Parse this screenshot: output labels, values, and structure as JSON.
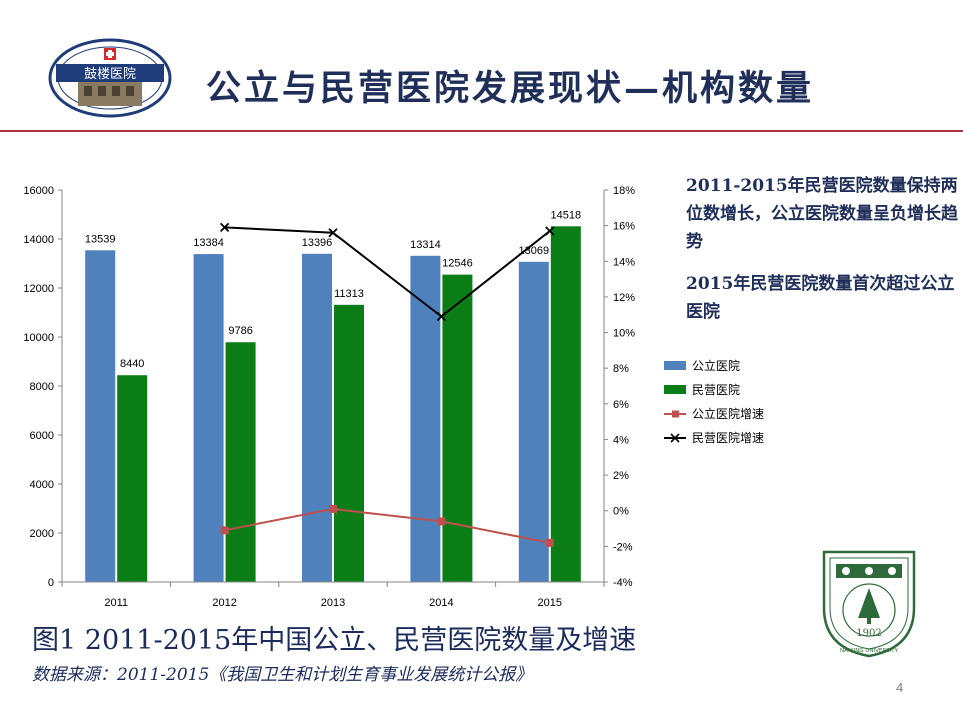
{
  "slide": {
    "title": "公立与民营医院发展现状—机构数量",
    "page_number": "4",
    "logo": {
      "text": "鼓楼医院"
    },
    "seal": {
      "year": "1902",
      "text": "NANJING UNIVERSITY"
    },
    "notes": [
      "2011-2015年民营医院数量保持两位数增长，公立医院数量呈负增长趋势",
      "2015年民营医院数量首次超过公立医院"
    ],
    "caption": "图1 2011-2015年中国公立、民营医院数量及增速",
    "source": "数据来源：2011-2015《我国卫生和计划生育事业发展统计公报》",
    "colors": {
      "accent_rule": "#a7363d",
      "title": "#1f2f5a"
    }
  },
  "chart_data": {
    "type": "bar",
    "categories": [
      "2011",
      "2012",
      "2013",
      "2014",
      "2015"
    ],
    "series": [
      {
        "name": "公立医院",
        "type": "bar",
        "axis": "left",
        "color": "#4f81bd",
        "values": [
          13539,
          13384,
          13396,
          13314,
          13069
        ]
      },
      {
        "name": "民营医院",
        "type": "bar",
        "axis": "left",
        "color": "#0b7d16",
        "values": [
          8440,
          9786,
          11313,
          12546,
          14518
        ]
      },
      {
        "name": "公立医院增速",
        "type": "line",
        "axis": "right",
        "color": "#c0504d",
        "marker": "square",
        "values": [
          null,
          -1.1,
          0.1,
          -0.6,
          -1.8
        ]
      },
      {
        "name": "民营医院增速",
        "type": "line",
        "axis": "right",
        "color": "#000000",
        "marker": "x",
        "values": [
          null,
          15.9,
          15.6,
          10.9,
          15.7
        ]
      }
    ],
    "y_left": {
      "range": [
        0,
        16000
      ],
      "ticks": [
        "0",
        "2000",
        "4000",
        "6000",
        "8000",
        "10000",
        "12000",
        "14000",
        "16000"
      ]
    },
    "y_right": {
      "range": [
        -4,
        18
      ],
      "ticks": [
        "-4%",
        "-2%",
        "0%",
        "2%",
        "4%",
        "6%",
        "8%",
        "10%",
        "12%",
        "14%",
        "16%",
        "18%"
      ]
    },
    "legend": "right",
    "grid": false
  }
}
